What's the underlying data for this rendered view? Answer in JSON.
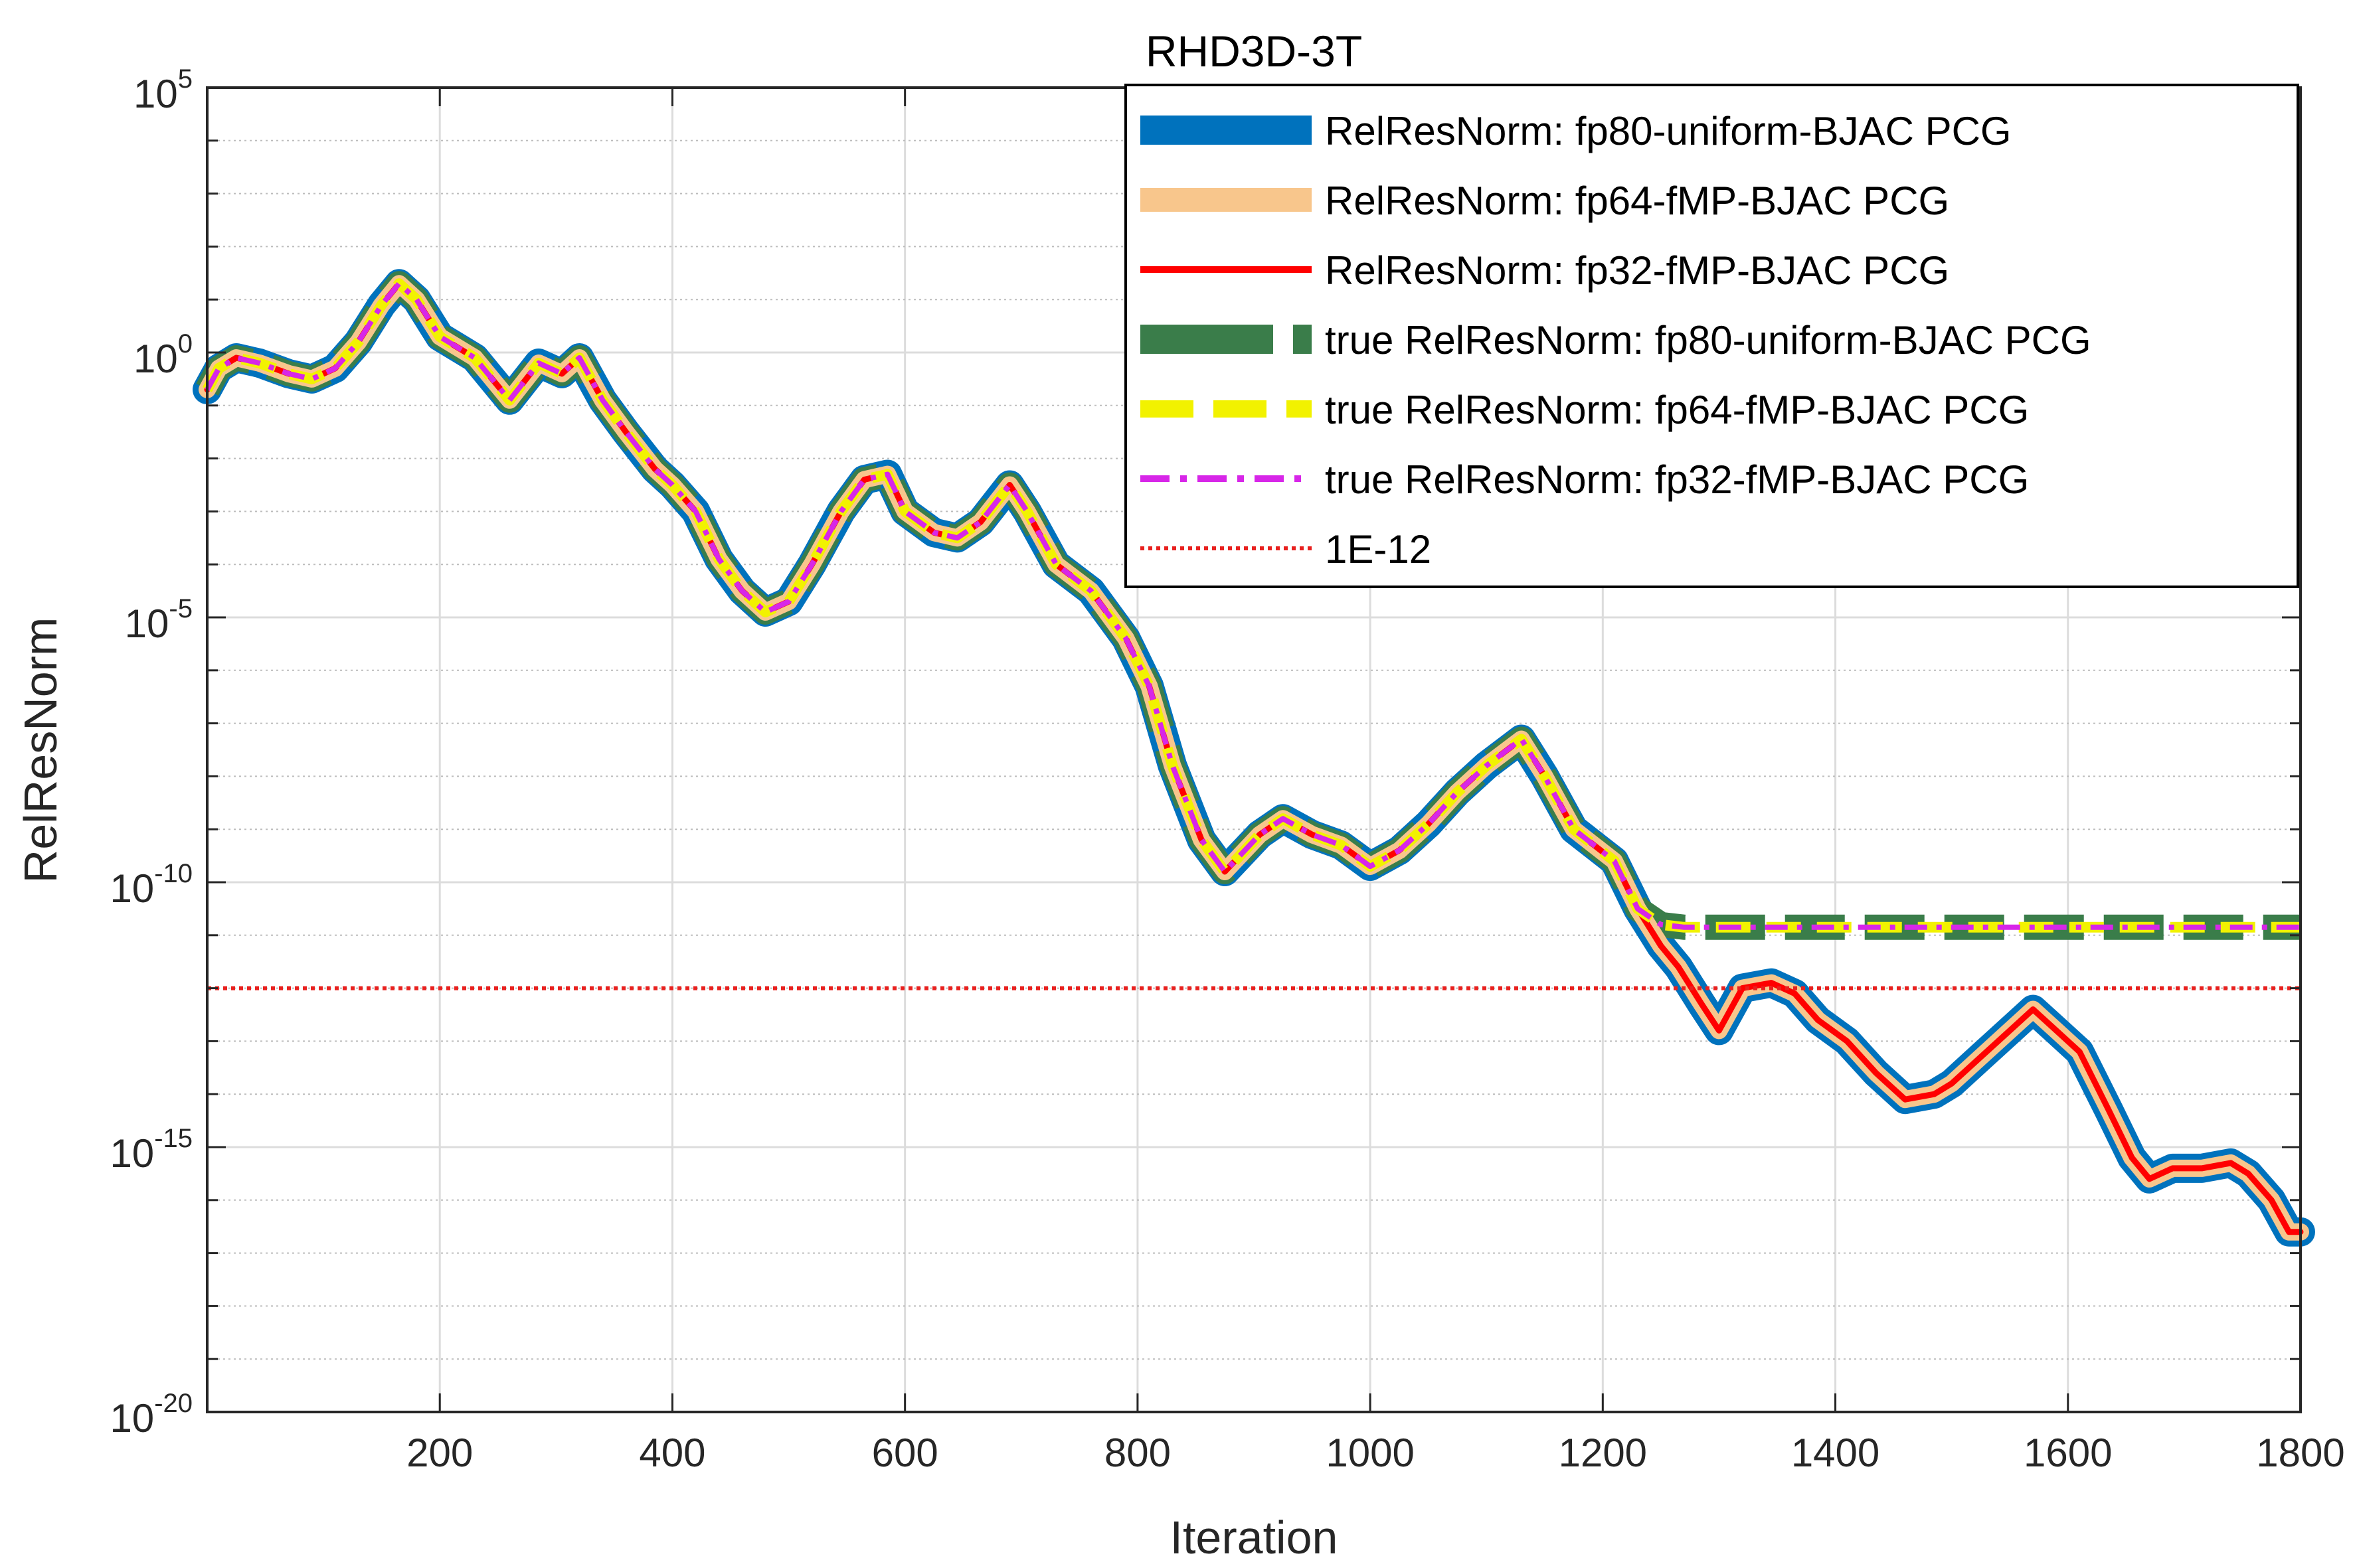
{
  "chart_data": {
    "type": "line",
    "title": "RHD3D-3T",
    "xlabel": "Iteration",
    "ylabel": "RelResNorm",
    "xlim": [
      0,
      1800
    ],
    "ylim": [
      1e-20,
      100000.0
    ],
    "yscale": "log",
    "grid": true,
    "legend_position": "top-right",
    "x_ticks": [
      200,
      400,
      600,
      800,
      1000,
      1200,
      1400,
      1600,
      1800
    ],
    "y_ticks": [
      {
        "base": "10",
        "exp": "-20",
        "value": -20
      },
      {
        "base": "10",
        "exp": "-15",
        "value": -15
      },
      {
        "base": "10",
        "exp": "-10",
        "value": -10
      },
      {
        "base": "10",
        "exp": "-5",
        "value": -5
      },
      {
        "base": "10",
        "exp": "0",
        "value": 0
      },
      {
        "base": "10",
        "exp": "5",
        "value": 5
      }
    ],
    "series": [
      {
        "name": "RelResNorm: fp80-uniform-BJAC PCG",
        "color": "#0072BD",
        "style": "solid",
        "group": "relres_fp80"
      },
      {
        "name": "RelResNorm: fp64-fMP-BJAC PCG",
        "color": "#F8C68C",
        "style": "solid",
        "group": "relres_fp64"
      },
      {
        "name": "RelResNorm: fp32-fMP-BJAC PCG",
        "color": "#FF0000",
        "style": "solid",
        "group": "relres_fp32"
      },
      {
        "name": "true RelResNorm: fp80-uniform-BJAC PCG",
        "color": "#3A7D4A",
        "style": "dashed-thick",
        "group": "true_fp80"
      },
      {
        "name": "true RelResNorm: fp64-fMP-BJAC PCG",
        "color": "#F2F200",
        "style": "dashed",
        "group": "true_fp64"
      },
      {
        "name": "true RelResNorm: fp32-fMP-BJAC PCG",
        "color": "#D726E8",
        "style": "dashdot",
        "group": "true_fp32"
      },
      {
        "name": "1E-12",
        "color": "#E8201E",
        "style": "dotted",
        "group": "threshold"
      }
    ],
    "relres_log10": {
      "x": [
        0,
        10,
        25,
        45,
        70,
        90,
        110,
        130,
        150,
        165,
        180,
        200,
        230,
        260,
        285,
        305,
        320,
        340,
        360,
        385,
        400,
        420,
        440,
        460,
        480,
        500,
        520,
        545,
        565,
        585,
        600,
        625,
        645,
        665,
        690,
        705,
        730,
        760,
        790,
        810,
        830,
        855,
        875,
        905,
        925,
        950,
        975,
        1000,
        1025,
        1050,
        1075,
        1100,
        1130,
        1150,
        1175,
        1210,
        1230,
        1250,
        1265,
        1285,
        1300,
        1320,
        1345,
        1365,
        1385,
        1410,
        1435,
        1460,
        1485,
        1500,
        1525,
        1550,
        1570,
        1590,
        1610,
        1635,
        1655,
        1670,
        1690,
        1715,
        1740,
        1755,
        1775,
        1790,
        1800
      ],
      "y": [
        -0.7,
        -0.3,
        -0.1,
        -0.2,
        -0.4,
        -0.5,
        -0.3,
        0.2,
        0.9,
        1.3,
        1.0,
        0.3,
        -0.1,
        -0.9,
        -0.2,
        -0.4,
        -0.1,
        -0.9,
        -1.5,
        -2.2,
        -2.5,
        -3.0,
        -3.9,
        -4.5,
        -4.9,
        -4.7,
        -4.0,
        -3.0,
        -2.4,
        -2.3,
        -3.0,
        -3.4,
        -3.5,
        -3.2,
        -2.5,
        -3.0,
        -4.0,
        -4.5,
        -5.4,
        -6.3,
        -7.8,
        -9.2,
        -9.8,
        -9.1,
        -8.8,
        -9.1,
        -9.3,
        -9.7,
        -9.4,
        -8.9,
        -8.3,
        -7.8,
        -7.3,
        -8.0,
        -9.0,
        -9.6,
        -10.5,
        -11.2,
        -11.6,
        -12.3,
        -12.8,
        -12.0,
        -11.9,
        -12.1,
        -12.6,
        -13.0,
        -13.6,
        -14.1,
        -14.0,
        -13.8,
        -13.3,
        -12.8,
        -12.4,
        -12.8,
        -13.2,
        -14.3,
        -15.2,
        -15.6,
        -15.4,
        -15.4,
        -15.3,
        -15.5,
        -16.0,
        -16.6,
        -16.6
      ]
    },
    "true_relres_log10": {
      "x": [
        0,
        10,
        25,
        45,
        70,
        90,
        110,
        130,
        150,
        165,
        180,
        200,
        230,
        260,
        285,
        305,
        320,
        340,
        360,
        385,
        400,
        420,
        440,
        460,
        480,
        500,
        520,
        545,
        565,
        585,
        600,
        625,
        645,
        665,
        690,
        705,
        730,
        760,
        790,
        810,
        830,
        855,
        875,
        905,
        925,
        950,
        975,
        1000,
        1025,
        1050,
        1075,
        1100,
        1130,
        1150,
        1175,
        1210,
        1230,
        1250,
        1270,
        1300,
        1400,
        1500,
        1600,
        1700,
        1800
      ],
      "y": [
        -0.7,
        -0.3,
        -0.1,
        -0.2,
        -0.4,
        -0.5,
        -0.3,
        0.2,
        0.9,
        1.3,
        1.0,
        0.3,
        -0.1,
        -0.9,
        -0.2,
        -0.4,
        -0.1,
        -0.9,
        -1.5,
        -2.2,
        -2.5,
        -3.0,
        -3.9,
        -4.5,
        -4.9,
        -4.7,
        -4.0,
        -3.0,
        -2.4,
        -2.3,
        -3.0,
        -3.4,
        -3.5,
        -3.2,
        -2.5,
        -3.0,
        -4.0,
        -4.5,
        -5.4,
        -6.3,
        -7.8,
        -9.2,
        -9.8,
        -9.1,
        -8.8,
        -9.1,
        -9.3,
        -9.7,
        -9.4,
        -8.9,
        -8.3,
        -7.8,
        -7.3,
        -8.0,
        -9.0,
        -9.6,
        -10.5,
        -10.8,
        -10.85,
        -10.85,
        -10.85,
        -10.85,
        -10.85,
        -10.85,
        -10.85
      ]
    },
    "threshold_value": 1e-12
  }
}
